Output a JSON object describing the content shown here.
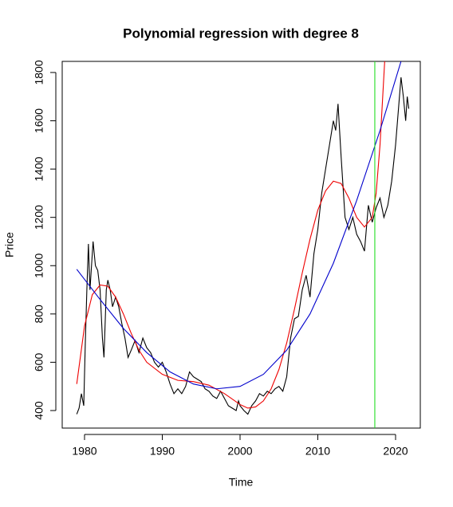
{
  "chart_data": {
    "type": "line",
    "title": "Polynomial regression with degree 8",
    "xlabel": "Time",
    "ylabel": "Price",
    "xlim": [
      1977.13,
      2023.18
    ],
    "ylim": [
      327.4,
      1846
    ],
    "xticks": [
      1980,
      1990,
      2000,
      2010,
      2020
    ],
    "yticks": [
      400,
      600,
      800,
      1000,
      1200,
      1400,
      1600,
      1800
    ],
    "vline": 2017.33,
    "vline_color": "#22dd22",
    "series": [
      {
        "color": "#000000",
        "x": [
          1979.0,
          1979.3,
          1979.6,
          1979.9,
          1980.1,
          1980.3,
          1980.5,
          1980.7,
          1980.9,
          1981.1,
          1981.4,
          1981.7,
          1982.0,
          1982.3,
          1982.5,
          1982.8,
          1983.0,
          1983.3,
          1983.6,
          1984.0,
          1984.4,
          1984.8,
          1985.2,
          1985.6,
          1986.0,
          1986.5,
          1987.0,
          1987.5,
          1988.0,
          1988.5,
          1989.0,
          1989.5,
          1990.0,
          1990.5,
          1991.0,
          1991.5,
          1992.0,
          1992.5,
          1993.0,
          1993.5,
          1994.0,
          1994.5,
          1995.0,
          1995.5,
          1996.0,
          1996.5,
          1997.0,
          1997.5,
          1998.0,
          1998.5,
          1999.0,
          1999.5,
          1999.8,
          2000.0,
          2000.5,
          2001.0,
          2001.5,
          2002.0,
          2002.5,
          2003.0,
          2003.5,
          2004.0,
          2004.5,
          2005.0,
          2005.5,
          2006.0,
          2006.5,
          2007.0,
          2007.5,
          2008.0,
          2008.5,
          2009.0,
          2009.5,
          2010.0,
          2010.5,
          2011.0,
          2011.5,
          2012.0,
          2012.3,
          2012.6,
          2013.0,
          2013.5,
          2014.0,
          2014.5,
          2015.0,
          2015.5,
          2016.0,
          2016.5,
          2017.0,
          2017.5,
          2018.0,
          2018.5,
          2019.0,
          2019.5,
          2020.0,
          2020.5,
          2020.7,
          2021.0,
          2021.3,
          2021.5,
          2021.7
        ],
        "values": [
          385,
          410,
          470,
          420,
          680,
          900,
          1090,
          900,
          1000,
          1100,
          1000,
          980,
          900,
          700,
          620,
          900,
          940,
          900,
          830,
          870,
          830,
          760,
          700,
          620,
          650,
          690,
          640,
          700,
          660,
          640,
          600,
          580,
          600,
          560,
          510,
          470,
          490,
          470,
          500,
          560,
          540,
          530,
          520,
          490,
          480,
          460,
          450,
          480,
          450,
          420,
          410,
          400,
          440,
          420,
          400,
          385,
          420,
          440,
          470,
          460,
          480,
          470,
          490,
          500,
          480,
          540,
          700,
          780,
          790,
          900,
          960,
          870,
          1050,
          1150,
          1300,
          1400,
          1500,
          1600,
          1560,
          1670,
          1450,
          1200,
          1150,
          1200,
          1130,
          1100,
          1060,
          1250,
          1180,
          1240,
          1280,
          1200,
          1250,
          1350,
          1500,
          1700,
          1780,
          1700,
          1600,
          1700,
          1650
        ]
      },
      {
        "color": "#ee0000",
        "x": [
          1979,
          1980,
          1981,
          1982,
          1983,
          1984,
          1985,
          1986,
          1987,
          1988,
          1990,
          1992,
          1994,
          1996,
          1998,
          2000,
          2001,
          2002,
          2003,
          2004,
          2005,
          2006,
          2007,
          2008,
          2009,
          2010,
          2011,
          2012,
          2013,
          2014,
          2015,
          2016,
          2017,
          2017.5,
          2018,
          2018.6,
          2019
        ],
        "values": [
          510,
          750,
          880,
          920,
          915,
          870,
          800,
          720,
          650,
          600,
          550,
          525,
          520,
          505,
          470,
          425,
          410,
          415,
          440,
          490,
          570,
          680,
          820,
          970,
          1110,
          1230,
          1310,
          1350,
          1340,
          1280,
          1200,
          1160,
          1200,
          1300,
          1500,
          1846,
          2100
        ]
      },
      {
        "color": "#0000cc",
        "x": [
          1979,
          1982,
          1985,
          1988,
          1991,
          1994,
          1997,
          2000,
          2003,
          2006,
          2009,
          2012,
          2015,
          2018,
          2020.7
        ],
        "values": [
          985,
          860,
          740,
          640,
          560,
          510,
          490,
          500,
          550,
          650,
          800,
          1010,
          1270,
          1560,
          1846
        ]
      }
    ]
  }
}
